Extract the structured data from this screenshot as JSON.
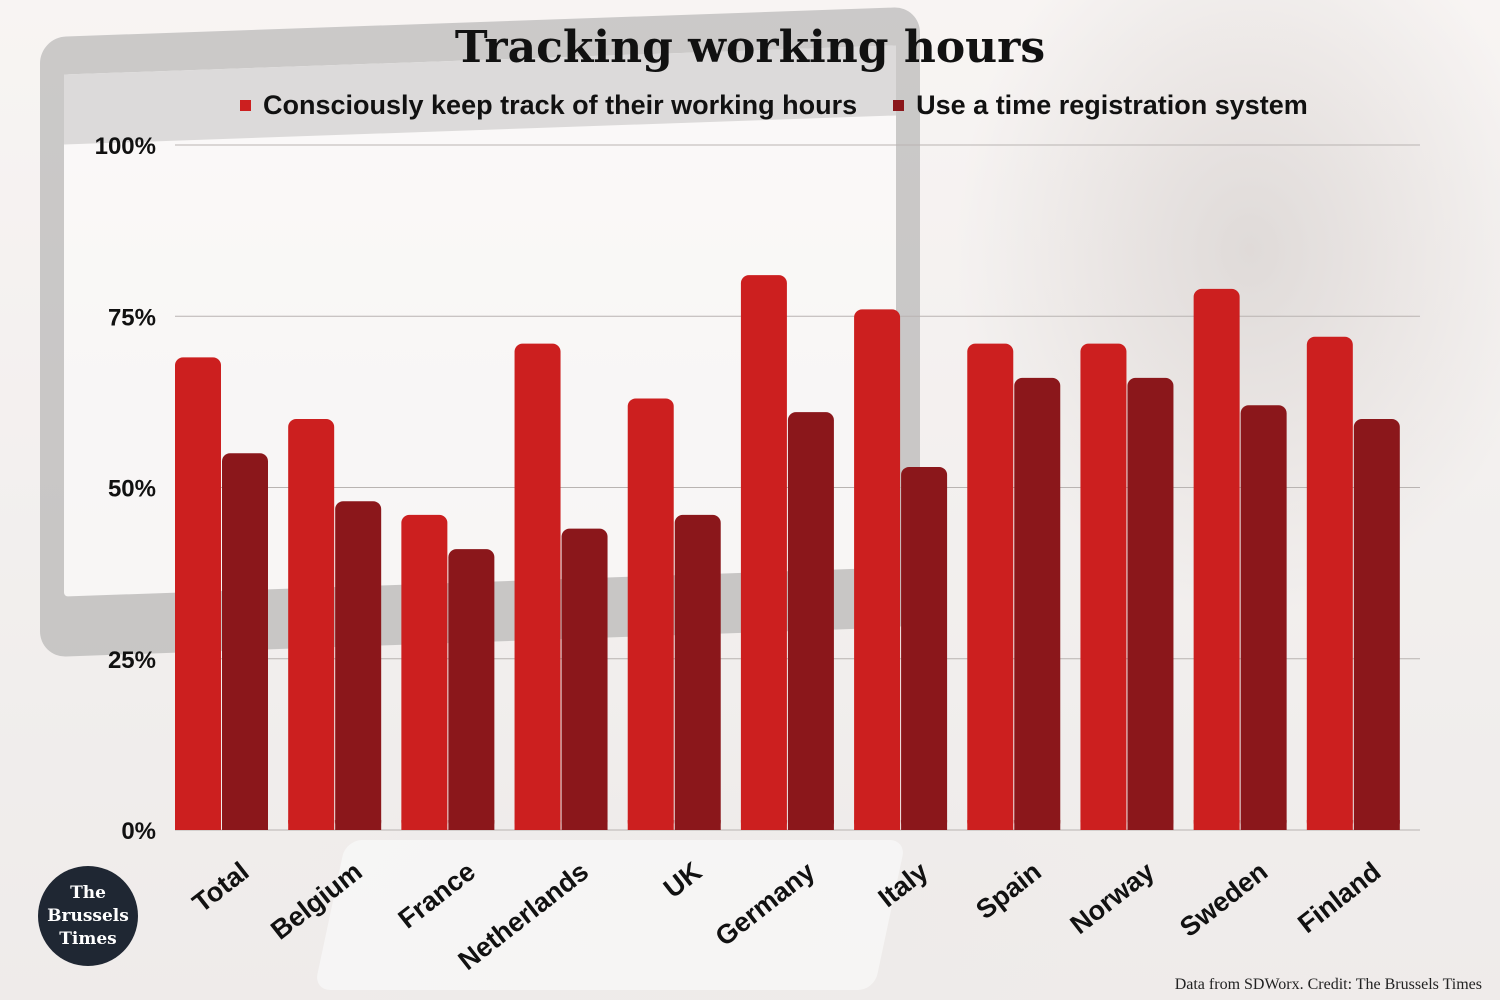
{
  "title": "Tracking working hours",
  "credit": "Data from SDWorx. Credit: The Brussels Times",
  "logo": {
    "line1": "The",
    "line2": "Brussels",
    "line3": "Times"
  },
  "colors": {
    "series1": "#cc1f1f",
    "series2": "#8b171b",
    "logo_bg": "#1f2733"
  },
  "chart_data": {
    "type": "bar",
    "title": "Tracking working hours",
    "xlabel": "",
    "ylabel": "",
    "ylim": [
      0,
      100
    ],
    "yticks": [
      "0%",
      "25%",
      "50%",
      "75%",
      "100%"
    ],
    "grid": true,
    "legend_position": "top",
    "categories": [
      "Total",
      "Belgium",
      "France",
      "Netherlands",
      "UK",
      "Germany",
      "Italy",
      "Spain",
      "Norway",
      "Sweden",
      "Finland"
    ],
    "series": [
      {
        "name": "Consciously keep track of their working hours",
        "values": [
          69,
          60,
          46,
          71,
          63,
          81,
          76,
          71,
          71,
          79,
          72
        ]
      },
      {
        "name": "Use a time registration system",
        "values": [
          55,
          48,
          41,
          44,
          46,
          61,
          53,
          66,
          66,
          62,
          60
        ]
      }
    ]
  }
}
